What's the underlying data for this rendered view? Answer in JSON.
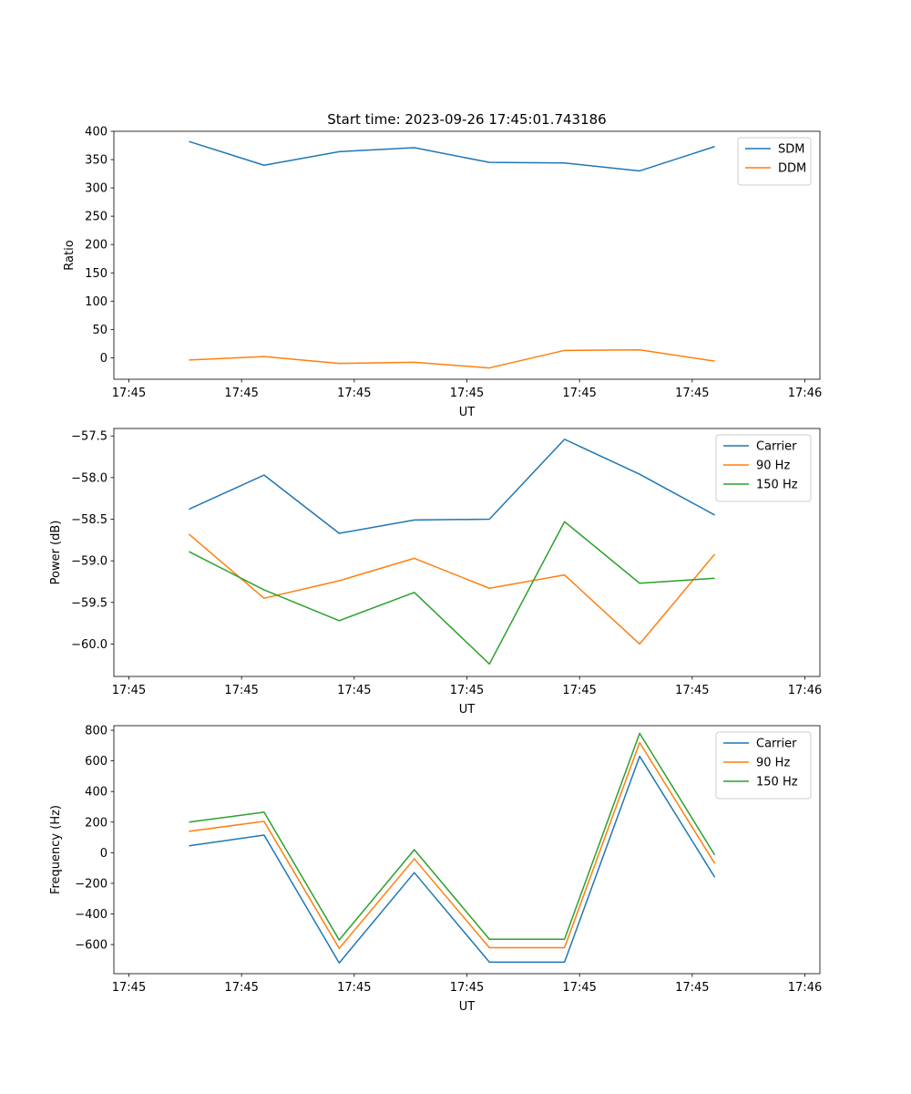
{
  "figure_title": "Start time: 2023-09-26 17:45:01.743186",
  "colors": {
    "blue": "#1f77b4",
    "orange": "#ff7f0e",
    "green": "#2ca02c"
  },
  "chart_data": [
    {
      "type": "line",
      "xlabel": "UT",
      "ylabel": "Ratio",
      "xlim": [
        0,
        9.4
      ],
      "ylim": [
        -38,
        400
      ],
      "xticks": [
        0.2,
        1.7,
        3.2,
        4.7,
        6.2,
        7.7,
        9.2
      ],
      "xtick_labels": [
        "17:45",
        "17:45",
        "17:45",
        "17:45",
        "17:45",
        "17:45",
        "17:46"
      ],
      "yticks": [
        0,
        50,
        100,
        150,
        200,
        250,
        300,
        350,
        400
      ],
      "ytick_labels": [
        "0",
        "50",
        "100",
        "150",
        "200",
        "250",
        "300",
        "350",
        "400"
      ],
      "x": [
        1,
        2,
        3,
        4,
        5,
        6,
        7,
        8
      ],
      "series": [
        {
          "name": "SDM",
          "color": "#1f77b4",
          "values": [
            382,
            340,
            364,
            371,
            345,
            344,
            330,
            373
          ]
        },
        {
          "name": "DDM",
          "color": "#ff7f0e",
          "values": [
            -4,
            2,
            -10,
            -8,
            -18,
            13,
            14,
            -6
          ]
        }
      ],
      "legend": "top-right"
    },
    {
      "type": "line",
      "xlabel": "UT",
      "ylabel": "Power (dB)",
      "xlim": [
        0,
        9.4
      ],
      "ylim": [
        -60.39,
        -57.41
      ],
      "xticks": [
        0.2,
        1.7,
        3.2,
        4.7,
        6.2,
        7.7,
        9.2
      ],
      "xtick_labels": [
        "17:45",
        "17:45",
        "17:45",
        "17:45",
        "17:45",
        "17:45",
        "17:46"
      ],
      "yticks": [
        -60.0,
        -59.5,
        -59.0,
        -58.5,
        -58.0,
        -57.5
      ],
      "ytick_labels": [
        "−60.0",
        "−59.5",
        "−59.0",
        "−58.5",
        "−58.0",
        "−57.5"
      ],
      "x": [
        1,
        2,
        3,
        4,
        5,
        6,
        7,
        8
      ],
      "series": [
        {
          "name": "Carrier",
          "color": "#1f77b4",
          "values": [
            -58.38,
            -57.97,
            -58.67,
            -58.51,
            -58.5,
            -57.54,
            -57.96,
            -58.45
          ]
        },
        {
          "name": "90 Hz",
          "color": "#ff7f0e",
          "values": [
            -58.68,
            -59.45,
            -59.24,
            -58.97,
            -59.33,
            -59.17,
            -60.0,
            -58.92
          ]
        },
        {
          "name": "150 Hz",
          "color": "#2ca02c",
          "values": [
            -58.89,
            -59.35,
            -59.72,
            -59.38,
            -60.24,
            -58.53,
            -59.27,
            -59.21
          ]
        }
      ],
      "legend": "top-right"
    },
    {
      "type": "line",
      "xlabel": "UT",
      "ylabel": "Frequency (Hz)",
      "xlim": [
        0,
        9.4
      ],
      "ylim": [
        -790,
        830
      ],
      "xticks": [
        0.2,
        1.7,
        3.2,
        4.7,
        6.2,
        7.7,
        9.2
      ],
      "xtick_labels": [
        "17:45",
        "17:45",
        "17:45",
        "17:45",
        "17:45",
        "17:45",
        "17:46"
      ],
      "yticks": [
        -600,
        -400,
        -200,
        0,
        200,
        400,
        600,
        800
      ],
      "ytick_labels": [
        "−600",
        "−400",
        "−200",
        "0",
        "200",
        "400",
        "600",
        "800"
      ],
      "x": [
        1,
        2,
        3,
        4,
        5,
        6,
        7,
        8
      ],
      "series": [
        {
          "name": "Carrier",
          "color": "#1f77b4",
          "values": [
            45,
            115,
            -720,
            -130,
            -715,
            -715,
            630,
            -160
          ]
        },
        {
          "name": "90 Hz",
          "color": "#ff7f0e",
          "values": [
            140,
            205,
            -625,
            -40,
            -620,
            -620,
            720,
            -70
          ]
        },
        {
          "name": "150 Hz",
          "color": "#2ca02c",
          "values": [
            200,
            265,
            -570,
            20,
            -565,
            -565,
            780,
            -15
          ]
        }
      ],
      "legend": "top-right"
    }
  ]
}
